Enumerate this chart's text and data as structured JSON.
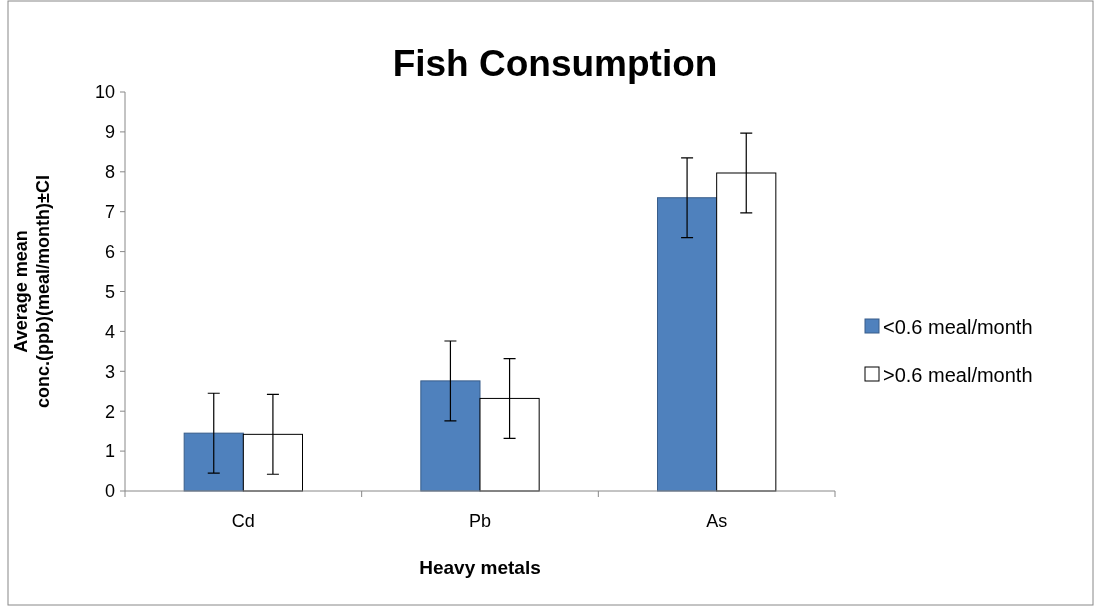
{
  "chart_data": {
    "type": "bar",
    "title": "Fish Consumption",
    "xlabel": "Heavy metals",
    "ylabel": "Average mean\nconc.(ppb)(meal/month)±CI",
    "categories": [
      "Cd",
      "Pb",
      "As"
    ],
    "series": [
      {
        "name": "<0.6 meal/month",
        "color": "#4f81bd",
        "values": [
          1.45,
          2.76,
          7.35
        ],
        "errors": [
          1,
          1,
          1
        ]
      },
      {
        "name": ">0.6 meal/month",
        "color": "#ffffff",
        "values": [
          1.42,
          2.32,
          7.97
        ],
        "errors": [
          1,
          1,
          1
        ]
      }
    ],
    "ylim": [
      0,
      10
    ],
    "yticks": [
      0,
      1,
      2,
      3,
      4,
      5,
      6,
      7,
      8,
      9,
      10
    ],
    "grid": false,
    "legend": "right"
  }
}
